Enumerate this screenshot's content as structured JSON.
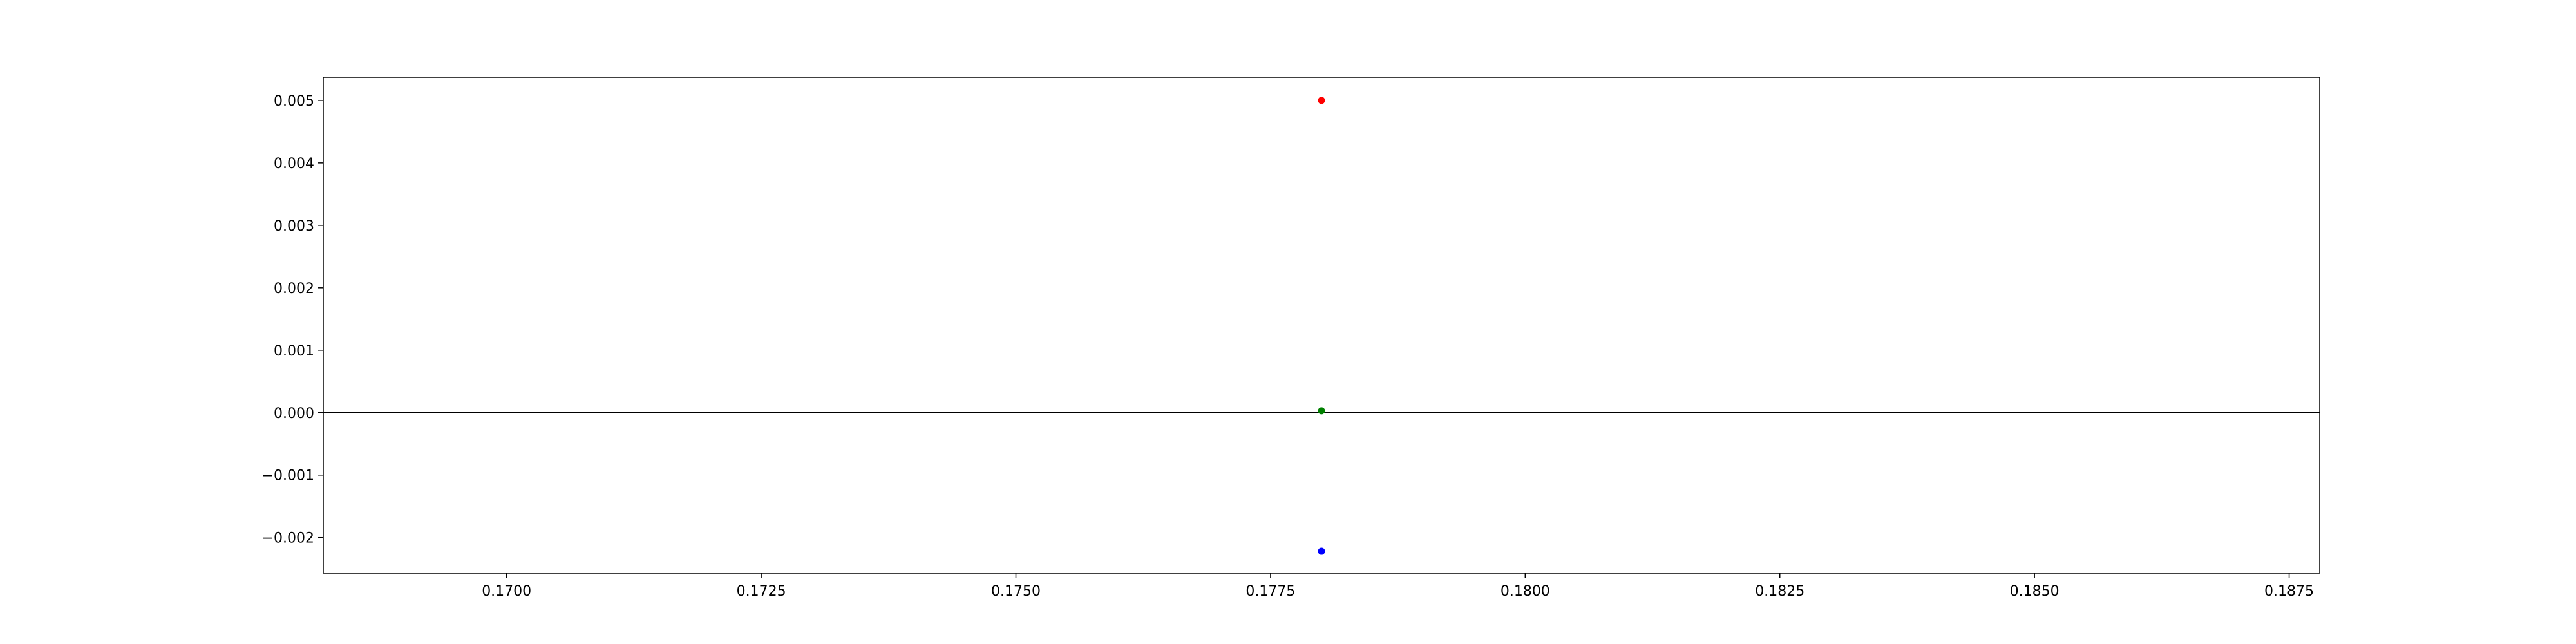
{
  "chart_data": {
    "type": "scatter",
    "title": "",
    "xlabel": "",
    "ylabel": "",
    "xlim": [
      0.1682,
      0.1878
    ],
    "ylim": [
      -0.00257,
      0.00537
    ],
    "grid": false,
    "x_ticks": [
      0.17,
      0.1725,
      0.175,
      0.1775,
      0.18,
      0.1825,
      0.185,
      0.1875
    ],
    "x_tick_labels": [
      "0.1700",
      "0.1725",
      "0.1750",
      "0.1775",
      "0.1800",
      "0.1825",
      "0.1850",
      "0.1875"
    ],
    "y_ticks": [
      -0.002,
      -0.001,
      0.0,
      0.001,
      0.002,
      0.003,
      0.004,
      0.005
    ],
    "y_tick_labels": [
      "−0.002",
      "−0.001",
      "0.000",
      "0.001",
      "0.002",
      "0.003",
      "0.004",
      "0.005"
    ],
    "horizontal_line": {
      "y": 0,
      "color": "#000000"
    },
    "points": [
      {
        "x": 0.178,
        "y": 0.005,
        "color": "#ff0000"
      },
      {
        "x": 0.178,
        "y": 3e-05,
        "color": "#008000"
      },
      {
        "x": 0.178,
        "y": -0.00222,
        "color": "#0000ff"
      }
    ]
  }
}
